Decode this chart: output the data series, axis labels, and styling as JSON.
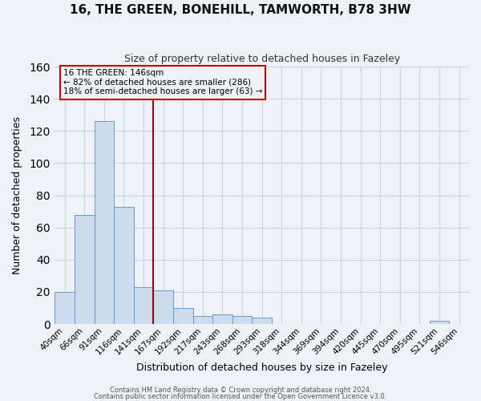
{
  "title": "16, THE GREEN, BONEHILL, TAMWORTH, B78 3HW",
  "subtitle": "Size of property relative to detached houses in Fazeley",
  "xlabel": "Distribution of detached houses by size in Fazeley",
  "ylabel": "Number of detached properties",
  "bar_labels": [
    "40sqm",
    "66sqm",
    "91sqm",
    "116sqm",
    "141sqm",
    "167sqm",
    "192sqm",
    "217sqm",
    "243sqm",
    "268sqm",
    "293sqm",
    "318sqm",
    "344sqm",
    "369sqm",
    "394sqm",
    "420sqm",
    "445sqm",
    "470sqm",
    "495sqm",
    "521sqm",
    "546sqm"
  ],
  "bar_values": [
    20,
    68,
    126,
    73,
    23,
    21,
    10,
    5,
    6,
    5,
    4,
    0,
    0,
    0,
    0,
    0,
    0,
    0,
    0,
    2,
    0
  ],
  "bar_color": "#ccdcee",
  "bar_edge_color": "#6699cc",
  "grid_color": "#c8d4e0",
  "background_color": "#eef2f7",
  "ylim": [
    0,
    160
  ],
  "yticks": [
    0,
    20,
    40,
    60,
    80,
    100,
    120,
    140,
    160
  ],
  "red_line_x": 4.5,
  "annotation_title": "16 THE GREEN: 146sqm",
  "annotation_line1": "← 82% of detached houses are smaller (286)",
  "annotation_line2": "18% of semi-detached houses are larger (63) →",
  "footer1": "Contains HM Land Registry data © Crown copyright and database right 2024.",
  "footer2": "Contains public sector information licensed under the Open Government Licence v3.0."
}
